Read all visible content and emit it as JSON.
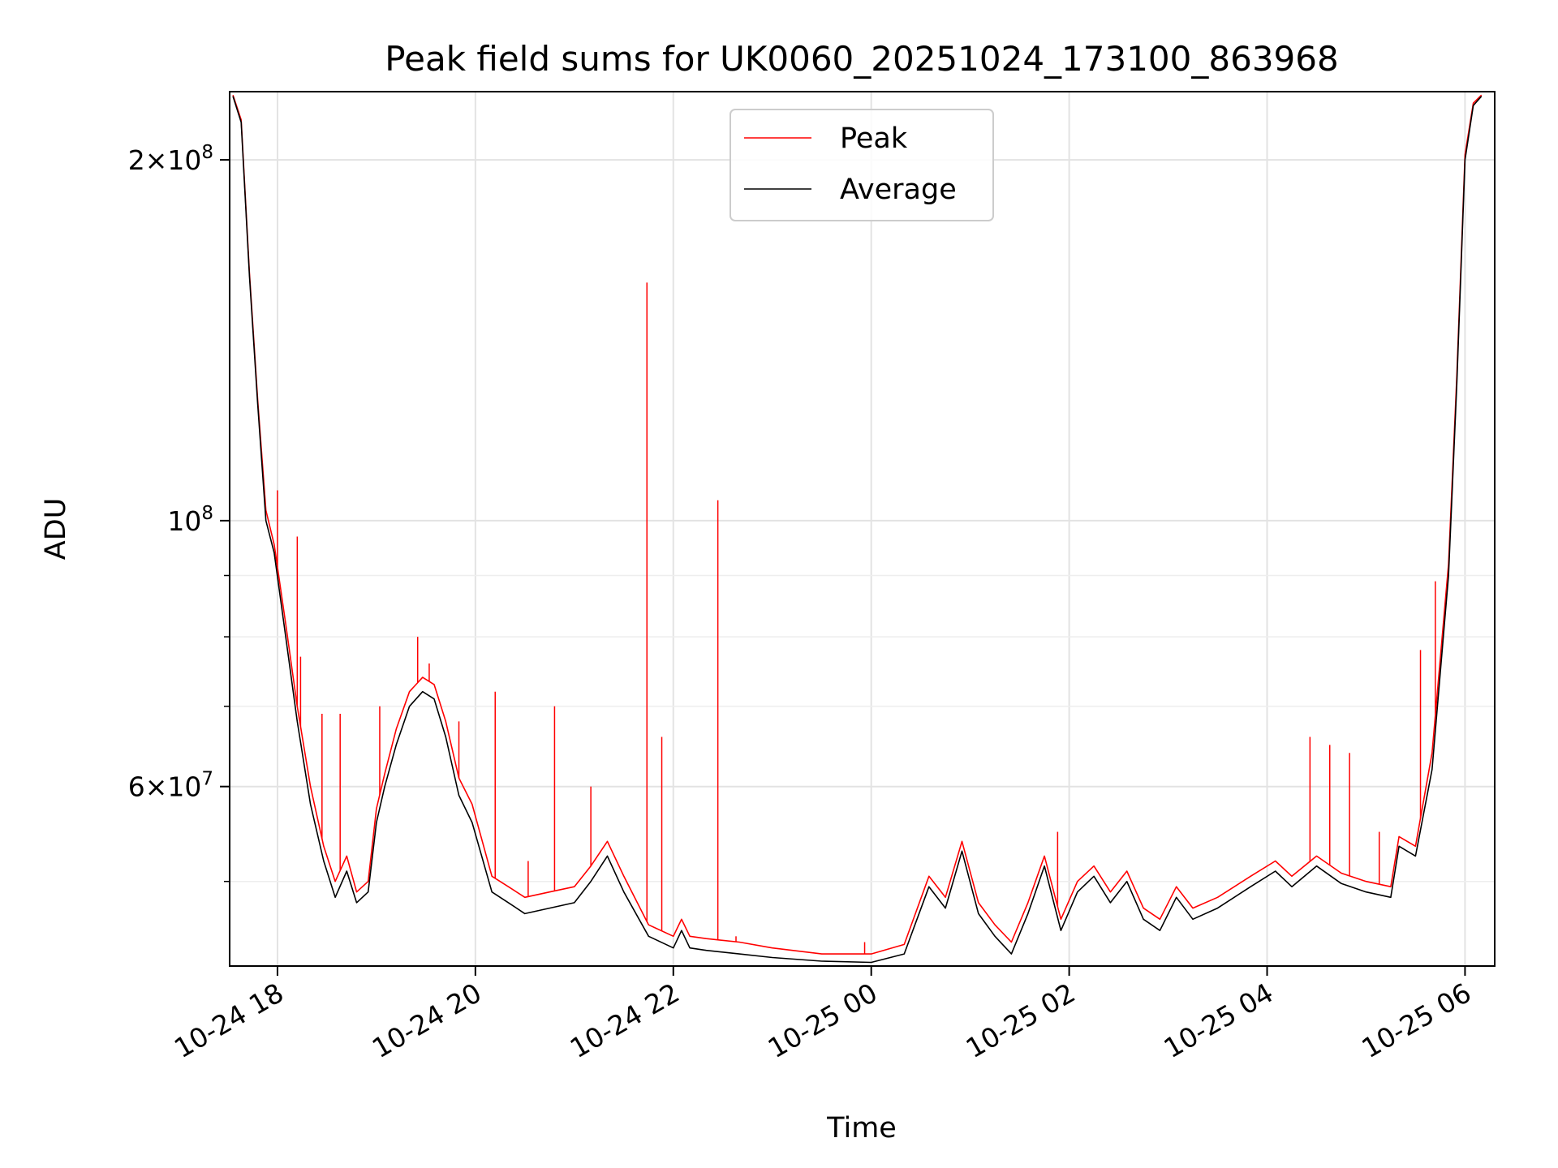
{
  "chart_data": {
    "type": "line",
    "title": "Peak field sums for UK0060_20251024_173100_863968",
    "xlabel": "Time",
    "ylabel": "ADU",
    "yscale": "log",
    "xlim": [
      "2025-10-24 17:31",
      "2025-10-25 06:18"
    ],
    "ylim": [
      42500000,
      228000000
    ],
    "grid": true,
    "legend_position": "top-center",
    "x_tick_labels": [
      "10-24 18",
      "10-24 20",
      "10-24 22",
      "10-25 00",
      "10-25 02",
      "10-25 04",
      "10-25 06"
    ],
    "x_ticks": [
      "2025-10-24 18:00",
      "2025-10-24 20:00",
      "2025-10-24 22:00",
      "2025-10-25 00:00",
      "2025-10-25 02:00",
      "2025-10-25 04:00",
      "2025-10-25 06:00"
    ],
    "y_major_ticks": [
      {
        "value": 200000000,
        "mantissa": "2",
        "exponent": "8"
      },
      {
        "value": 100000000,
        "mantissa": "",
        "exponent": "8"
      },
      {
        "value": 60000000,
        "mantissa": "6",
        "exponent": "7"
      }
    ],
    "y_minor_ticks": [
      50000000,
      70000000,
      80000000,
      90000000
    ],
    "series": [
      {
        "name": "Average",
        "color": "#000000",
        "x": [
          "2025-10-24 17:33",
          "2025-10-24 17:38",
          "2025-10-24 17:43",
          "2025-10-24 17:48",
          "2025-10-24 17:53",
          "2025-10-24 17:58",
          "2025-10-24 18:05",
          "2025-10-24 18:12",
          "2025-10-24 18:20",
          "2025-10-24 18:28",
          "2025-10-24 18:35",
          "2025-10-24 18:42",
          "2025-10-24 18:48",
          "2025-10-24 18:55",
          "2025-10-24 19:00",
          "2025-10-24 19:05",
          "2025-10-24 19:12",
          "2025-10-24 19:20",
          "2025-10-24 19:28",
          "2025-10-24 19:35",
          "2025-10-24 19:42",
          "2025-10-24 19:50",
          "2025-10-24 19:58",
          "2025-10-24 20:10",
          "2025-10-24 20:20",
          "2025-10-24 20:30",
          "2025-10-24 20:45",
          "2025-10-24 21:00",
          "2025-10-24 21:10",
          "2025-10-24 21:20",
          "2025-10-24 21:30",
          "2025-10-24 21:45",
          "2025-10-24 22:00",
          "2025-10-24 22:05",
          "2025-10-24 22:10",
          "2025-10-24 22:20",
          "2025-10-24 22:40",
          "2025-10-24 23:00",
          "2025-10-24 23:30",
          "2025-10-25 00:00",
          "2025-10-25 00:20",
          "2025-10-25 00:35",
          "2025-10-25 00:45",
          "2025-10-25 00:55",
          "2025-10-25 01:05",
          "2025-10-25 01:15",
          "2025-10-25 01:25",
          "2025-10-25 01:35",
          "2025-10-25 01:45",
          "2025-10-25 01:55",
          "2025-10-25 02:05",
          "2025-10-25 02:15",
          "2025-10-25 02:25",
          "2025-10-25 02:35",
          "2025-10-25 02:45",
          "2025-10-25 02:55",
          "2025-10-25 03:05",
          "2025-10-25 03:15",
          "2025-10-25 03:30",
          "2025-10-25 03:50",
          "2025-10-25 04:05",
          "2025-10-25 04:15",
          "2025-10-25 04:30",
          "2025-10-25 04:45",
          "2025-10-25 05:00",
          "2025-10-25 05:15",
          "2025-10-25 05:20",
          "2025-10-25 05:30",
          "2025-10-25 05:40",
          "2025-10-25 05:50",
          "2025-10-25 05:55",
          "2025-10-25 06:00",
          "2025-10-25 06:05",
          "2025-10-25 06:10"
        ],
        "y": [
          226000000,
          215000000,
          160000000,
          125000000,
          100000000,
          94000000,
          80000000,
          68000000,
          58000000,
          52000000,
          48500000,
          51000000,
          48000000,
          49000000,
          56000000,
          60000000,
          65000000,
          70000000,
          72000000,
          71000000,
          66000000,
          59000000,
          56000000,
          49000000,
          48000000,
          47000000,
          47500000,
          48000000,
          50000000,
          52500000,
          49000000,
          45000000,
          44000000,
          45500000,
          44000000,
          43800000,
          43500000,
          43200000,
          42900000,
          42800000,
          43500000,
          49500000,
          47500000,
          53000000,
          47000000,
          45000000,
          43500000,
          47000000,
          51500000,
          45500000,
          49000000,
          50500000,
          48000000,
          50000000,
          46500000,
          45500000,
          48500000,
          46500000,
          47500000,
          49500000,
          51000000,
          49500000,
          51500000,
          49800000,
          49000000,
          48500000,
          53500000,
          52500000,
          62000000,
          90000000,
          130000000,
          200000000,
          222000000,
          226000000
        ]
      },
      {
        "name": "Peak",
        "color": "#ff0000",
        "x": [
          "2025-10-24 17:33",
          "2025-10-24 17:38",
          "2025-10-24 17:43",
          "2025-10-24 17:48",
          "2025-10-24 17:53",
          "2025-10-24 17:58",
          "2025-10-24 18:05",
          "2025-10-24 18:12",
          "2025-10-24 18:20",
          "2025-10-24 18:28",
          "2025-10-24 18:35",
          "2025-10-24 18:42",
          "2025-10-24 18:48",
          "2025-10-24 18:55",
          "2025-10-24 19:00",
          "2025-10-24 19:05",
          "2025-10-24 19:12",
          "2025-10-24 19:20",
          "2025-10-24 19:28",
          "2025-10-24 19:35",
          "2025-10-24 19:42",
          "2025-10-24 19:50",
          "2025-10-24 19:58",
          "2025-10-24 20:10",
          "2025-10-24 20:20",
          "2025-10-24 20:30",
          "2025-10-24 20:45",
          "2025-10-24 21:00",
          "2025-10-24 21:10",
          "2025-10-24 21:20",
          "2025-10-24 21:30",
          "2025-10-24 21:45",
          "2025-10-24 22:00",
          "2025-10-24 22:05",
          "2025-10-24 22:10",
          "2025-10-24 22:20",
          "2025-10-24 22:40",
          "2025-10-24 23:00",
          "2025-10-24 23:30",
          "2025-10-25 00:00",
          "2025-10-25 00:20",
          "2025-10-25 00:35",
          "2025-10-25 00:45",
          "2025-10-25 00:55",
          "2025-10-25 01:05",
          "2025-10-25 01:15",
          "2025-10-25 01:25",
          "2025-10-25 01:35",
          "2025-10-25 01:45",
          "2025-10-25 01:55",
          "2025-10-25 02:05",
          "2025-10-25 02:15",
          "2025-10-25 02:25",
          "2025-10-25 02:35",
          "2025-10-25 02:45",
          "2025-10-25 02:55",
          "2025-10-25 03:05",
          "2025-10-25 03:15",
          "2025-10-25 03:30",
          "2025-10-25 03:50",
          "2025-10-25 04:05",
          "2025-10-25 04:15",
          "2025-10-25 04:30",
          "2025-10-25 04:45",
          "2025-10-25 05:00",
          "2025-10-25 05:15",
          "2025-10-25 05:20",
          "2025-10-25 05:30",
          "2025-10-25 05:40",
          "2025-10-25 05:50",
          "2025-10-25 05:55",
          "2025-10-25 06:00",
          "2025-10-25 06:05",
          "2025-10-25 06:10"
        ],
        "y": [
          226500000,
          216000000,
          161000000,
          126000000,
          102000000,
          95500000,
          82000000,
          70000000,
          60000000,
          53500000,
          50000000,
          52500000,
          49000000,
          50000000,
          57500000,
          61500000,
          67000000,
          72000000,
          74000000,
          73000000,
          68000000,
          61000000,
          58000000,
          50500000,
          49500000,
          48500000,
          49000000,
          49500000,
          51500000,
          54000000,
          50500000,
          46000000,
          45000000,
          46500000,
          45000000,
          44800000,
          44500000,
          44000000,
          43500000,
          43500000,
          44300000,
          50500000,
          48500000,
          54000000,
          48000000,
          46000000,
          44500000,
          48000000,
          52500000,
          46500000,
          50000000,
          51500000,
          49000000,
          51000000,
          47500000,
          46500000,
          49500000,
          47500000,
          48500000,
          50500000,
          52000000,
          50500000,
          52500000,
          50800000,
          50000000,
          49500000,
          54500000,
          53500000,
          64000000,
          92000000,
          132000000,
          202000000,
          223000000,
          226500000
        ],
        "spikes": [
          {
            "x": "2025-10-24 18:00",
            "y": 106000000
          },
          {
            "x": "2025-10-24 18:12",
            "y": 97000000
          },
          {
            "x": "2025-10-24 18:14",
            "y": 77000000
          },
          {
            "x": "2025-10-24 18:27",
            "y": 69000000
          },
          {
            "x": "2025-10-24 18:38",
            "y": 69000000
          },
          {
            "x": "2025-10-24 19:02",
            "y": 70000000
          },
          {
            "x": "2025-10-24 19:25",
            "y": 80000000
          },
          {
            "x": "2025-10-24 19:32",
            "y": 76000000
          },
          {
            "x": "2025-10-24 19:50",
            "y": 68000000
          },
          {
            "x": "2025-10-24 20:12",
            "y": 72000000
          },
          {
            "x": "2025-10-24 20:32",
            "y": 52000000
          },
          {
            "x": "2025-10-24 20:48",
            "y": 70000000
          },
          {
            "x": "2025-10-24 21:10",
            "y": 60000000
          },
          {
            "x": "2025-10-24 21:44",
            "y": 158000000
          },
          {
            "x": "2025-10-24 21:53",
            "y": 66000000
          },
          {
            "x": "2025-10-24 22:27",
            "y": 104000000
          },
          {
            "x": "2025-10-24 22:38",
            "y": 45000000
          },
          {
            "x": "2025-10-24 23:56",
            "y": 44500000
          },
          {
            "x": "2025-10-25 01:53",
            "y": 55000000
          },
          {
            "x": "2025-10-25 04:26",
            "y": 66000000
          },
          {
            "x": "2025-10-25 04:38",
            "y": 65000000
          },
          {
            "x": "2025-10-25 04:50",
            "y": 64000000
          },
          {
            "x": "2025-10-25 05:08",
            "y": 55000000
          },
          {
            "x": "2025-10-25 05:33",
            "y": 78000000
          },
          {
            "x": "2025-10-25 05:42",
            "y": 89000000
          }
        ]
      }
    ]
  }
}
